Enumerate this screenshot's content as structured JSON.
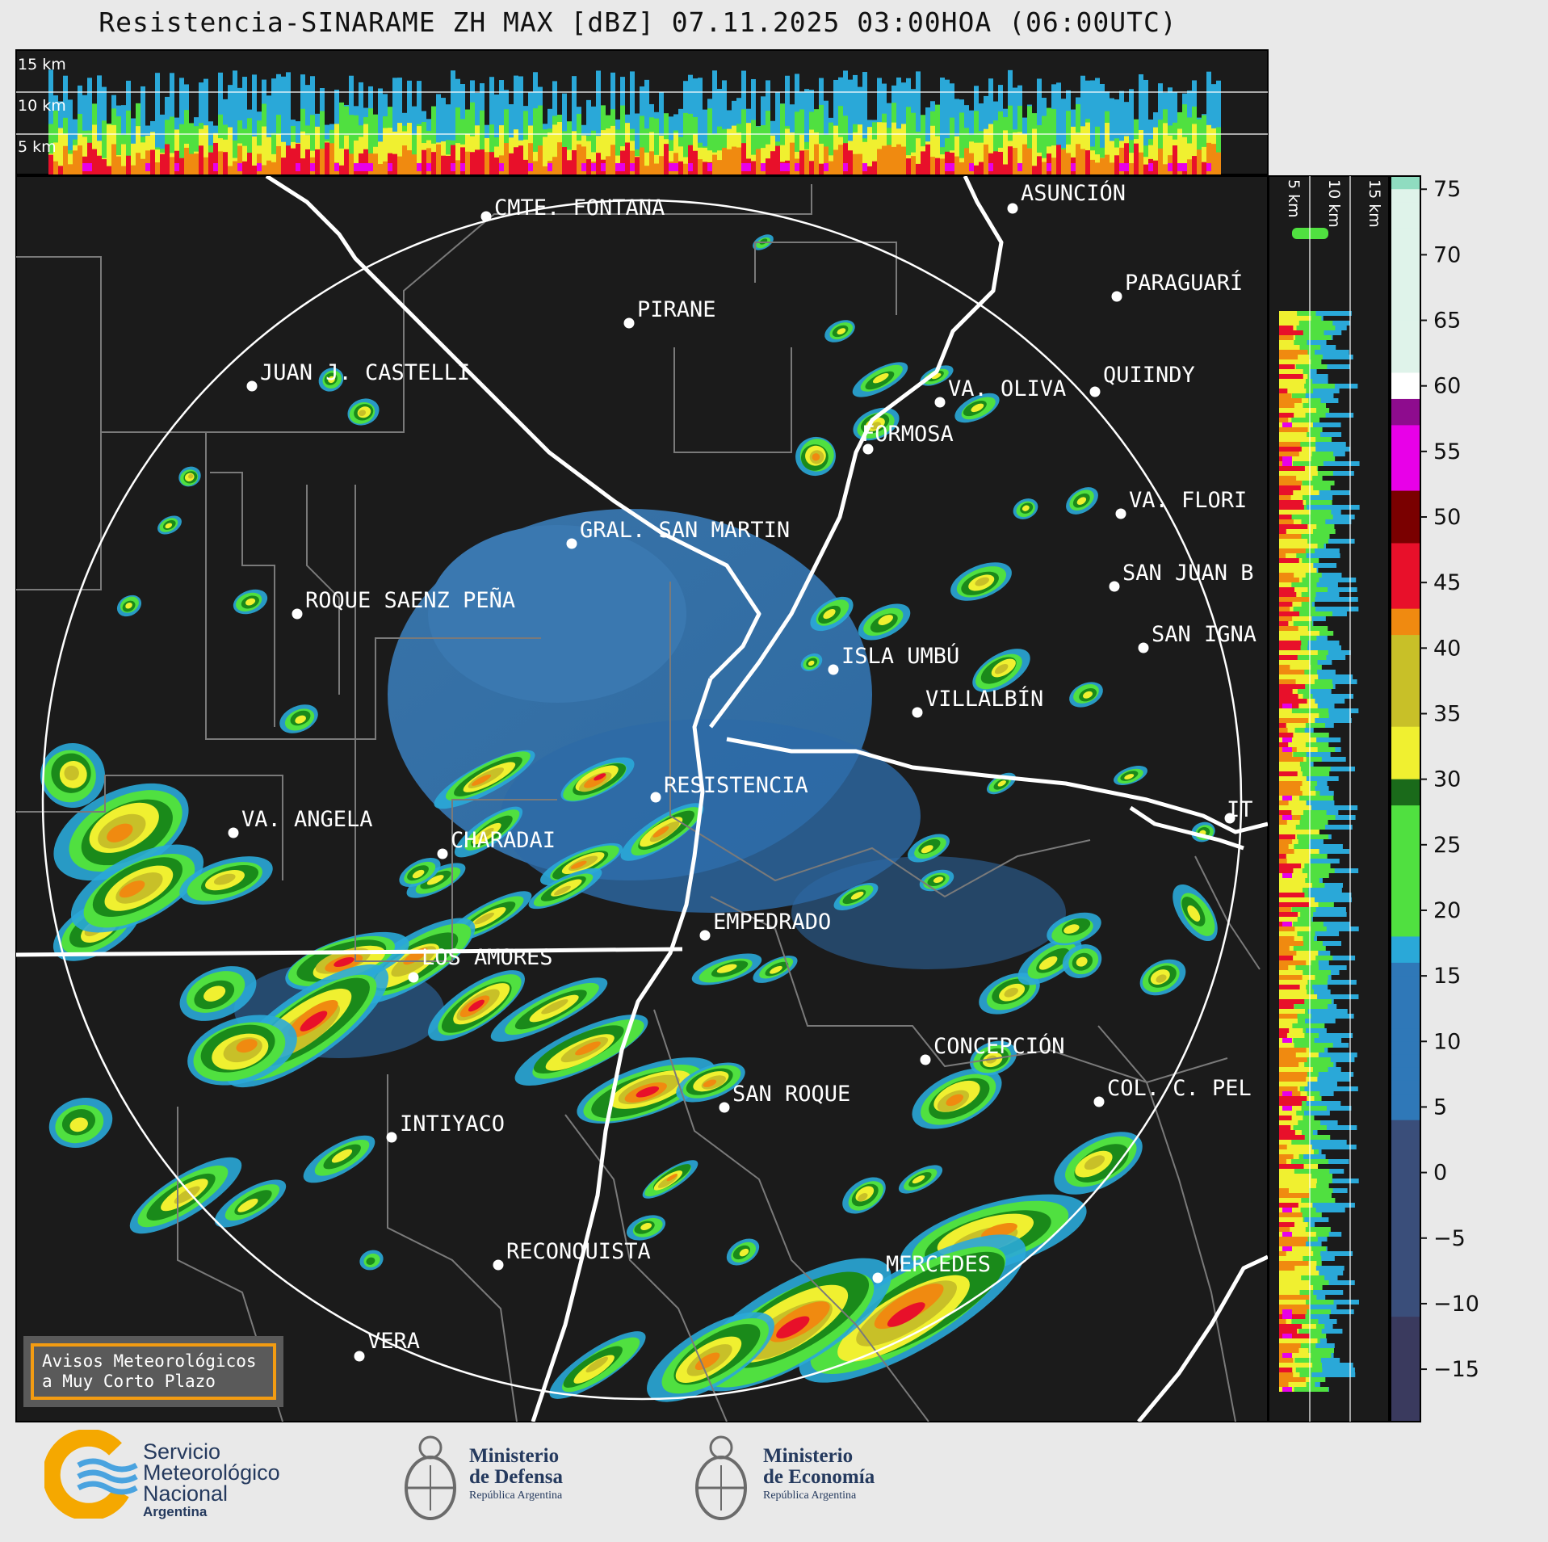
{
  "title": "Resistencia-SINARAME ZH MAX [dBZ] 07.11.2025 03:00HOA (06:00UTC)",
  "top_profile": {
    "altitude_labels": [
      "15 km",
      "10 km",
      "5 km"
    ]
  },
  "side_profile": {
    "altitude_labels": [
      "5 km",
      "10 km",
      "15 km"
    ]
  },
  "cities": [
    {
      "name": "CMTE. FONTANA"
    },
    {
      "name": "ASUNCIÓN"
    },
    {
      "name": "PIRANE"
    },
    {
      "name": "PARAGUARÍ"
    },
    {
      "name": "JUAN J. CASTELLI"
    },
    {
      "name": "VA. OLIVA"
    },
    {
      "name": "QUIINDY"
    },
    {
      "name": "FORMOSA"
    },
    {
      "name": "VA. FLORI"
    },
    {
      "name": "GRAL. SAN MARTIN"
    },
    {
      "name": "SAN JUAN B"
    },
    {
      "name": "ROQUE SAENZ PEÑA"
    },
    {
      "name": "SAN IGNA"
    },
    {
      "name": "ISLA UMBÚ"
    },
    {
      "name": "VILLALBÍN"
    },
    {
      "name": "RESISTENCIA"
    },
    {
      "name": "IT"
    },
    {
      "name": "VA. ANGELA"
    },
    {
      "name": "CHARADAI"
    },
    {
      "name": "EMPEDRADO"
    },
    {
      "name": "LOS AMORES"
    },
    {
      "name": "CONCEPCIÓN"
    },
    {
      "name": "SAN ROQUE"
    },
    {
      "name": "COL. C. PEL"
    },
    {
      "name": "INTIYACO"
    },
    {
      "name": "RECONQUISTA"
    },
    {
      "name": "MERCEDES"
    },
    {
      "name": "VERA"
    }
  ],
  "colorbar": {
    "unit": "dBZ",
    "ticks": [
      "75",
      "70",
      "65",
      "60",
      "55",
      "50",
      "45",
      "40",
      "35",
      "30",
      "25",
      "20",
      "15",
      "10",
      "5",
      "0",
      "−5",
      "−10",
      "−15"
    ],
    "stops": [
      {
        "value": 76,
        "color": "#8fdcc0"
      },
      {
        "value": 62,
        "color": "#dff3ea"
      },
      {
        "value": 60,
        "color": "#ffffff"
      },
      {
        "value": 58,
        "color": "#8e0c8e"
      },
      {
        "value": 53,
        "color": "#e800e8"
      },
      {
        "value": 49,
        "color": "#7a0000"
      },
      {
        "value": 44,
        "color": "#e8102a"
      },
      {
        "value": 42,
        "color": "#f08a10"
      },
      {
        "value": 35,
        "color": "#c8c028"
      },
      {
        "value": 31,
        "color": "#f0f030"
      },
      {
        "value": 29,
        "color": "#1a6a1a"
      },
      {
        "value": 19,
        "color": "#50e040"
      },
      {
        "value": 17,
        "color": "#2aa8d8"
      },
      {
        "value": 5,
        "color": "#2f78b8"
      },
      {
        "value": -10,
        "color": "#3a4e7a"
      },
      {
        "value": -19,
        "color": "#3a3a5e"
      }
    ]
  },
  "notice": {
    "line1": "Avisos Meteorológicos",
    "line2": "a Muy Corto Plazo"
  },
  "footer": {
    "smn": {
      "line1": "Servicio",
      "line2": "Meteorológico",
      "line3": "Nacional",
      "line4": "Argentina"
    },
    "defensa": {
      "line1": "Ministerio",
      "line2": "de Defensa",
      "line3": "República Argentina"
    },
    "economia": {
      "line1": "Ministerio",
      "line2": "de Economía",
      "line3": "República Argentina"
    }
  }
}
